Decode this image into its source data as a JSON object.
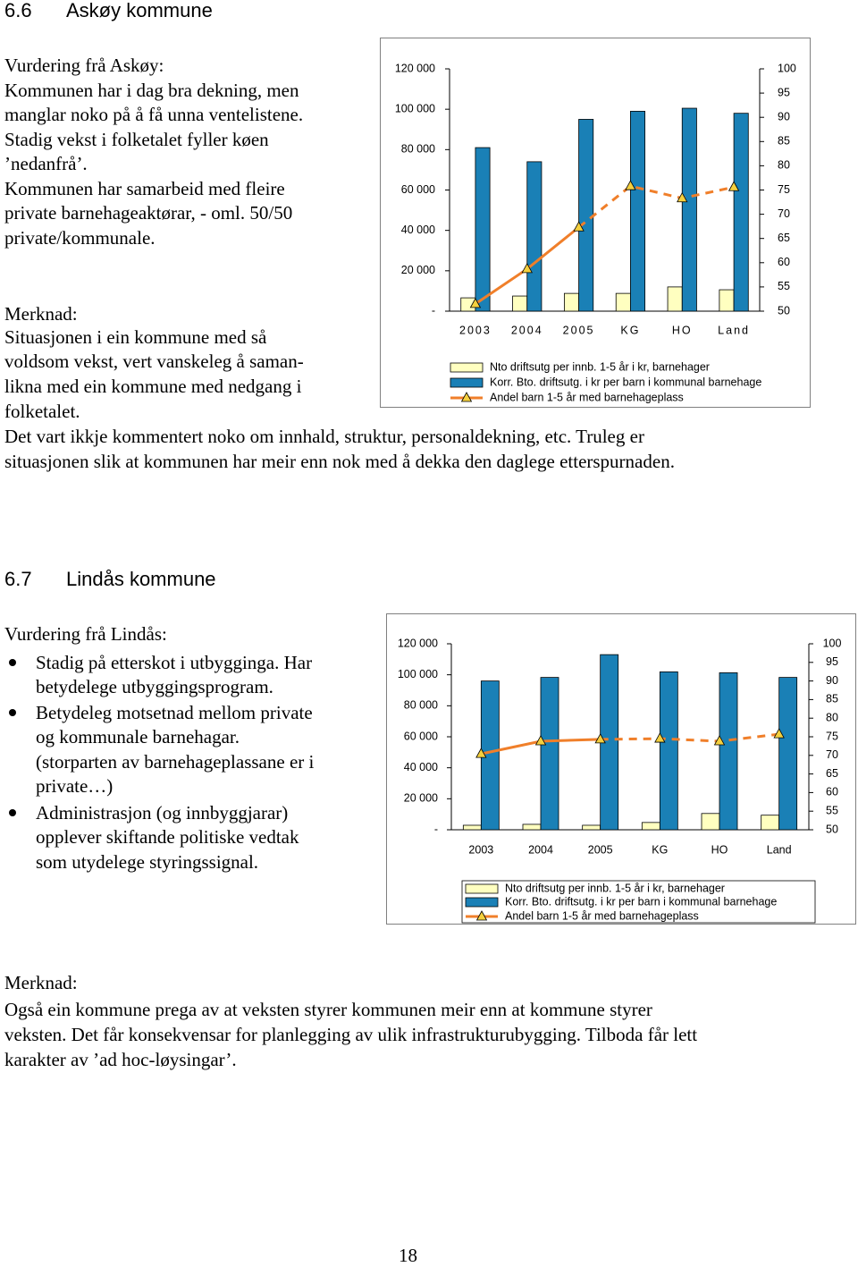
{
  "askoy": {
    "heading_number": "6.6",
    "heading_title": "Askøy kommune",
    "assessment": [
      "Vurdering frå Askøy:",
      "Kommunen har i dag bra dekning, men",
      "manglar noko på å få unna ventelistene.",
      "Stadig vekst i folketalet fyller køen",
      "’nedanfrå’.",
      "Kommunen har samarbeid med fleire",
      "private barnehageaktørar, - oml. 50/50",
      "private/kommunale."
    ],
    "note": [
      "Merknad:",
      "Situasjonen i ein kommune med så",
      "voldsom vekst, vert vanskeleg å saman-",
      "likna med ein kommune med nedgang i",
      "folketalet."
    ],
    "footer": [
      "Det vart ikkje kommentert noko om innhald, struktur, personaldekning, etc. Truleg er",
      "situasjonen slik at kommunen har meir enn nok med å dekka den daglege etterspurnaden."
    ]
  },
  "lindas": {
    "heading_number": "6.7",
    "heading_title": "Lindås kommune",
    "assessment_title": "Vurdering frå Lindås:",
    "bullets": [
      [
        "Stadig på etterskot i utbygginga. Har",
        "betydelege utbyggingsprogram."
      ],
      [
        "Betydeleg motsetnad mellom private",
        "og kommunale barnehagar.",
        "(storparten av barnehageplassane er i",
        "private…)"
      ],
      [
        "Administrasjon (og innbyggjarar)",
        "opplever skiftande politiske vedtak",
        "som utydelege styringssignal."
      ]
    ],
    "note": [
      "Merknad:",
      "Også ein kommune prega av at veksten styrer kommunen meir enn at kommune styrer",
      "veksten. Det får konsekvensar for planlegging av ulik infrastrukturubygging. Tilboda får lett",
      "karakter av ’ad hoc-løysingar’."
    ]
  },
  "page_number": "18",
  "chart_data": [
    {
      "type": "bar_line",
      "categories": [
        "2003",
        "2004",
        "2005",
        "KG",
        "HO",
        "Land"
      ],
      "series": [
        {
          "name": "Nto driftsutg per innb. 1-5 år i kr, barnehager",
          "type": "bar",
          "color": "#ffffc0",
          "values": [
            6600,
            7500,
            8800,
            8800,
            12000,
            10600
          ]
        },
        {
          "name": "Korr. Bto. driftsutg. i kr per barn i kommunal barnehage",
          "type": "bar",
          "color": "#1a80b6",
          "values": [
            81000,
            74000,
            95000,
            99000,
            100500,
            98000
          ]
        },
        {
          "name": "Andel barn 1-5 år med barnehageplass",
          "type": "line",
          "axis": "y2",
          "color": "#f07f2a",
          "marker_color": "#f4d03f",
          "values": [
            51.5,
            58.7,
            67.3,
            75.8,
            73.3,
            75.6
          ]
        }
      ],
      "ylim": [
        0,
        120000
      ],
      "yticks": [
        {
          "value": 0,
          "label": "-"
        },
        {
          "value": 20000,
          "label": "20 000"
        },
        {
          "value": 40000,
          "label": "40 000"
        },
        {
          "value": 60000,
          "label": "60 000"
        },
        {
          "value": 80000,
          "label": "80 000"
        },
        {
          "value": 100000,
          "label": "100 000"
        },
        {
          "value": 120000,
          "label": "120 000"
        }
      ],
      "y2lim": [
        50,
        100
      ],
      "y2ticks": [
        50,
        55,
        60,
        65,
        70,
        75,
        80,
        85,
        90,
        95,
        100
      ]
    },
    {
      "type": "bar_line",
      "categories": [
        "2003",
        "2004",
        "2005",
        "KG",
        "HO",
        "Land"
      ],
      "series": [
        {
          "name": "Nto driftsutg per innb. 1-5 år i kr, barnehager",
          "type": "bar",
          "color": "#ffffc0",
          "values": [
            2900,
            3500,
            2900,
            4700,
            10500,
            9400
          ]
        },
        {
          "name": "Korr. Bto. driftsutg. i kr per barn i kommunal barnehage",
          "type": "bar",
          "color": "#1a80b6",
          "values": [
            96000,
            98300,
            113000,
            101900,
            101300,
            98300
          ]
        },
        {
          "name": "Andel barn 1-5 år med barnehageplass",
          "type": "line",
          "axis": "y2",
          "color": "#f07f2a",
          "marker_color": "#f4d03f",
          "values": [
            70.4,
            73.8,
            74.3,
            74.5,
            73.8,
            75.7
          ]
        }
      ],
      "ylim": [
        0,
        120000
      ],
      "yticks": [
        {
          "value": 0,
          "label": "-"
        },
        {
          "value": 20000,
          "label": "20 000"
        },
        {
          "value": 40000,
          "label": "40 000"
        },
        {
          "value": 60000,
          "label": "60 000"
        },
        {
          "value": 80000,
          "label": "80 000"
        },
        {
          "value": 100000,
          "label": "100 000"
        },
        {
          "value": 120000,
          "label": "120 000"
        }
      ],
      "y2lim": [
        50,
        100
      ],
      "y2ticks": [
        50,
        55,
        60,
        65,
        70,
        75,
        80,
        85,
        90,
        95,
        100
      ]
    }
  ]
}
